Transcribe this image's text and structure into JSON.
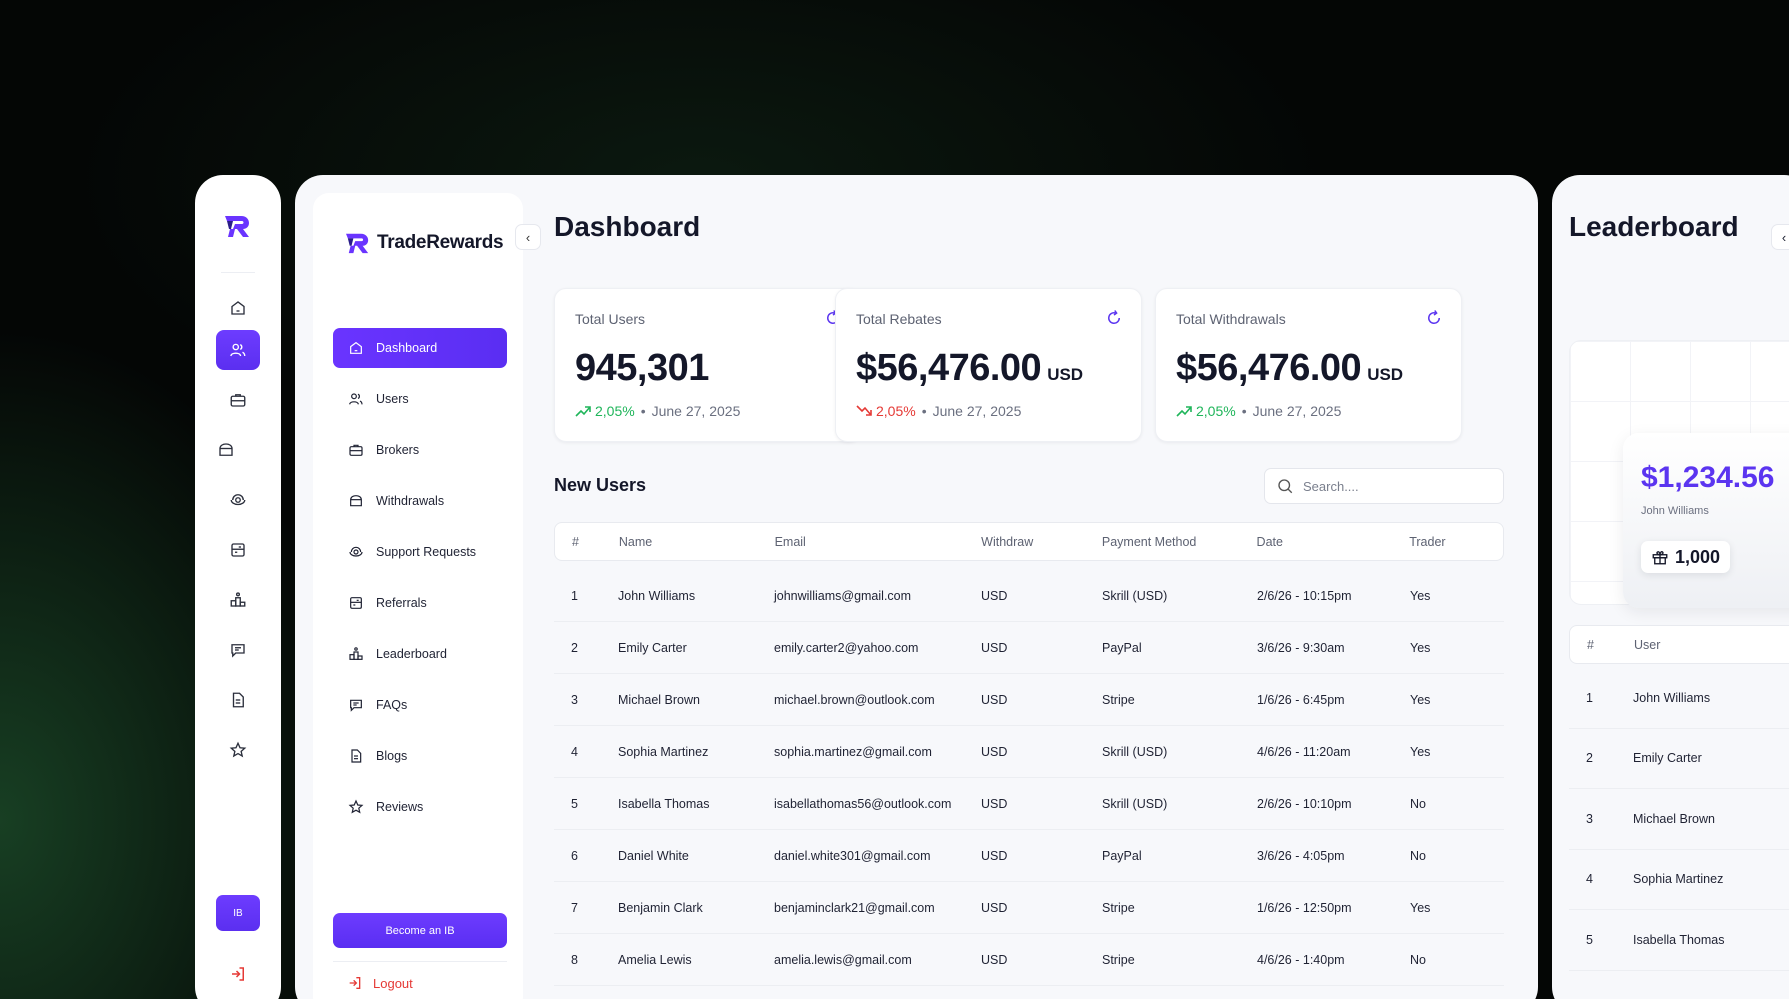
{
  "brand": {
    "name": "TradeRewards"
  },
  "nav": {
    "items": [
      {
        "label": "Dashboard",
        "icon": "home-icon"
      },
      {
        "label": "Users",
        "icon": "users-icon"
      },
      {
        "label": "Brokers",
        "icon": "briefcase-icon"
      },
      {
        "label": "Withdrawals",
        "icon": "wallet-icon"
      },
      {
        "label": "Support Requests",
        "icon": "support-icon"
      },
      {
        "label": "Referrals",
        "icon": "referrals-icon"
      },
      {
        "label": "Leaderboard",
        "icon": "leaderboard-icon"
      },
      {
        "label": "FAQs",
        "icon": "chat-icon"
      },
      {
        "label": "Blogs",
        "icon": "document-icon"
      },
      {
        "label": "Reviews",
        "icon": "star-icon"
      }
    ],
    "become_ib": "Become an IB",
    "logout": "Logout"
  },
  "rail": {
    "ib_label": "IB"
  },
  "dashboard": {
    "title": "Dashboard",
    "stats": [
      {
        "label": "Total Users",
        "value": "945,301",
        "unit": "",
        "trend": "up",
        "change": "2,05%",
        "date": "June 27, 2025"
      },
      {
        "label": "Total Rebates",
        "value": "$56,476.00",
        "unit": "USD",
        "trend": "down",
        "change": "2,05%",
        "date": "June 27, 2025"
      },
      {
        "label": "Total Withdrawals",
        "value": "$56,476.00",
        "unit": "USD",
        "trend": "up",
        "change": "2,05%",
        "date": "June 27, 2025"
      }
    ],
    "separator": "•",
    "new_users_title": "New Users",
    "search_placeholder": "Search....",
    "columns": [
      "#",
      "Name",
      "Email",
      "Withdraw",
      "Payment Method",
      "Date",
      "Trader"
    ],
    "rows": [
      [
        "1",
        "John Williams",
        "johnwilliams@gmail.com",
        "USD",
        "Skrill (USD)",
        "2/6/26 - 10:15pm",
        "Yes"
      ],
      [
        "2",
        "Emily Carter",
        "emily.carter2@yahoo.com",
        "USD",
        "PayPal",
        "3/6/26 - 9:30am",
        "Yes"
      ],
      [
        "3",
        "Michael Brown",
        "michael.brown@outlook.com",
        "USD",
        "Stripe",
        "1/6/26 - 6:45pm",
        "Yes"
      ],
      [
        "4",
        "Sophia Martinez",
        "sophia.martinez@gmail.com",
        "USD",
        "Skrill (USD)",
        "4/6/26 - 11:20am",
        "Yes"
      ],
      [
        "5",
        "Isabella Thomas",
        "isabellathomas56@outlook.com",
        "USD",
        "Skrill (USD)",
        "2/6/26 - 10:10pm",
        "No"
      ],
      [
        "6",
        "Daniel White",
        "daniel.white301@gmail.com",
        "USD",
        "PayPal",
        "3/6/26 - 4:05pm",
        "No"
      ],
      [
        "7",
        "Benjamin Clark",
        "benjaminclark21@gmail.com",
        "USD",
        "Stripe",
        "1/6/26 - 12:50pm",
        "Yes"
      ],
      [
        "8",
        "Amelia Lewis",
        "amelia.lewis@gmail.com",
        "USD",
        "Stripe",
        "4/6/26 - 1:40pm",
        "No"
      ]
    ]
  },
  "leaderboard": {
    "title": "Leaderboard",
    "amount": "$1,234.56",
    "name": "John Williams",
    "points": "1,000",
    "columns": [
      "#",
      "User"
    ],
    "rows": [
      [
        "1",
        "John Williams"
      ],
      [
        "2",
        "Emily Carter"
      ],
      [
        "3",
        "Michael Brown"
      ],
      [
        "4",
        "Sophia Martinez"
      ],
      [
        "5",
        "Isabella Thomas"
      ]
    ]
  },
  "colors": {
    "accent": "#5b35f0",
    "up": "#1fb55a",
    "down": "#e53935",
    "logout": "#e53935"
  }
}
